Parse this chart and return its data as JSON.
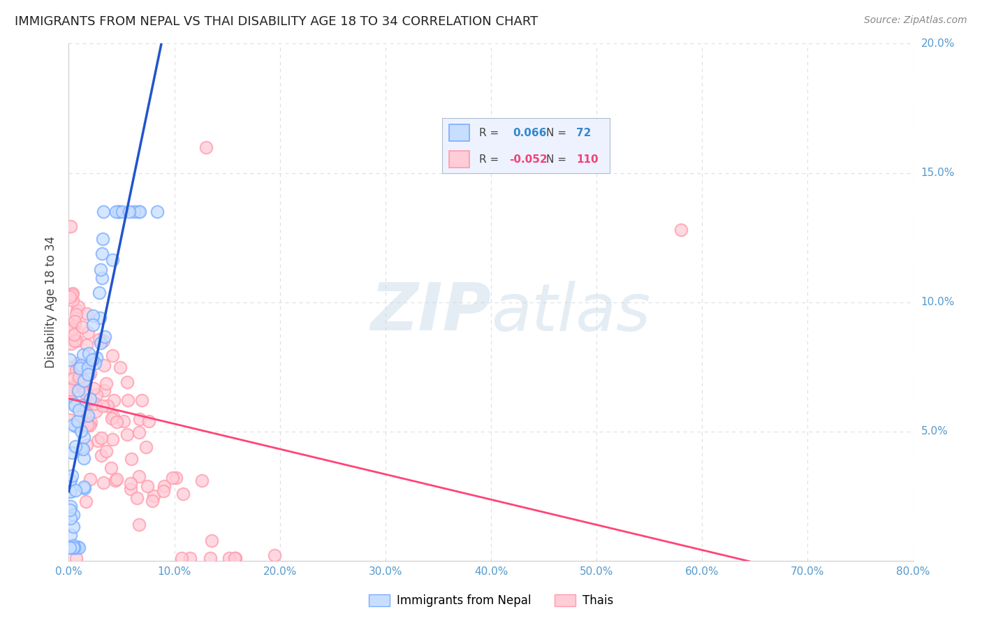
{
  "title": "IMMIGRANTS FROM NEPAL VS THAI DISABILITY AGE 18 TO 34 CORRELATION CHART",
  "source": "Source: ZipAtlas.com",
  "ylabel": "Disability Age 18 to 34",
  "xlim": [
    0.0,
    0.8
  ],
  "ylim": [
    0.0,
    0.2
  ],
  "xticks": [
    0.0,
    0.1,
    0.2,
    0.3,
    0.4,
    0.5,
    0.6,
    0.7,
    0.8
  ],
  "yticks": [
    0.0,
    0.05,
    0.1,
    0.15,
    0.2
  ],
  "nepal_R": 0.066,
  "nepal_N": 72,
  "thai_R": -0.052,
  "thai_N": 110,
  "nepal_face_color": "#c8deff",
  "nepal_edge_color": "#7aacff",
  "thai_face_color": "#ffccd8",
  "thai_edge_color": "#ff9aaa",
  "nepal_line_color": "#2255cc",
  "thai_line_color": "#ff4477",
  "dashed_line_color": "#99bbcc",
  "watermark_color": "#c5d8e8",
  "tick_color": "#5599cc",
  "ylabel_color": "#444444",
  "grid_color": "#e0e0e0",
  "background_color": "#ffffff",
  "title_color": "#222222",
  "source_color": "#888888",
  "legend_bg": "#eef2ff",
  "legend_border": "#b0bdd0"
}
